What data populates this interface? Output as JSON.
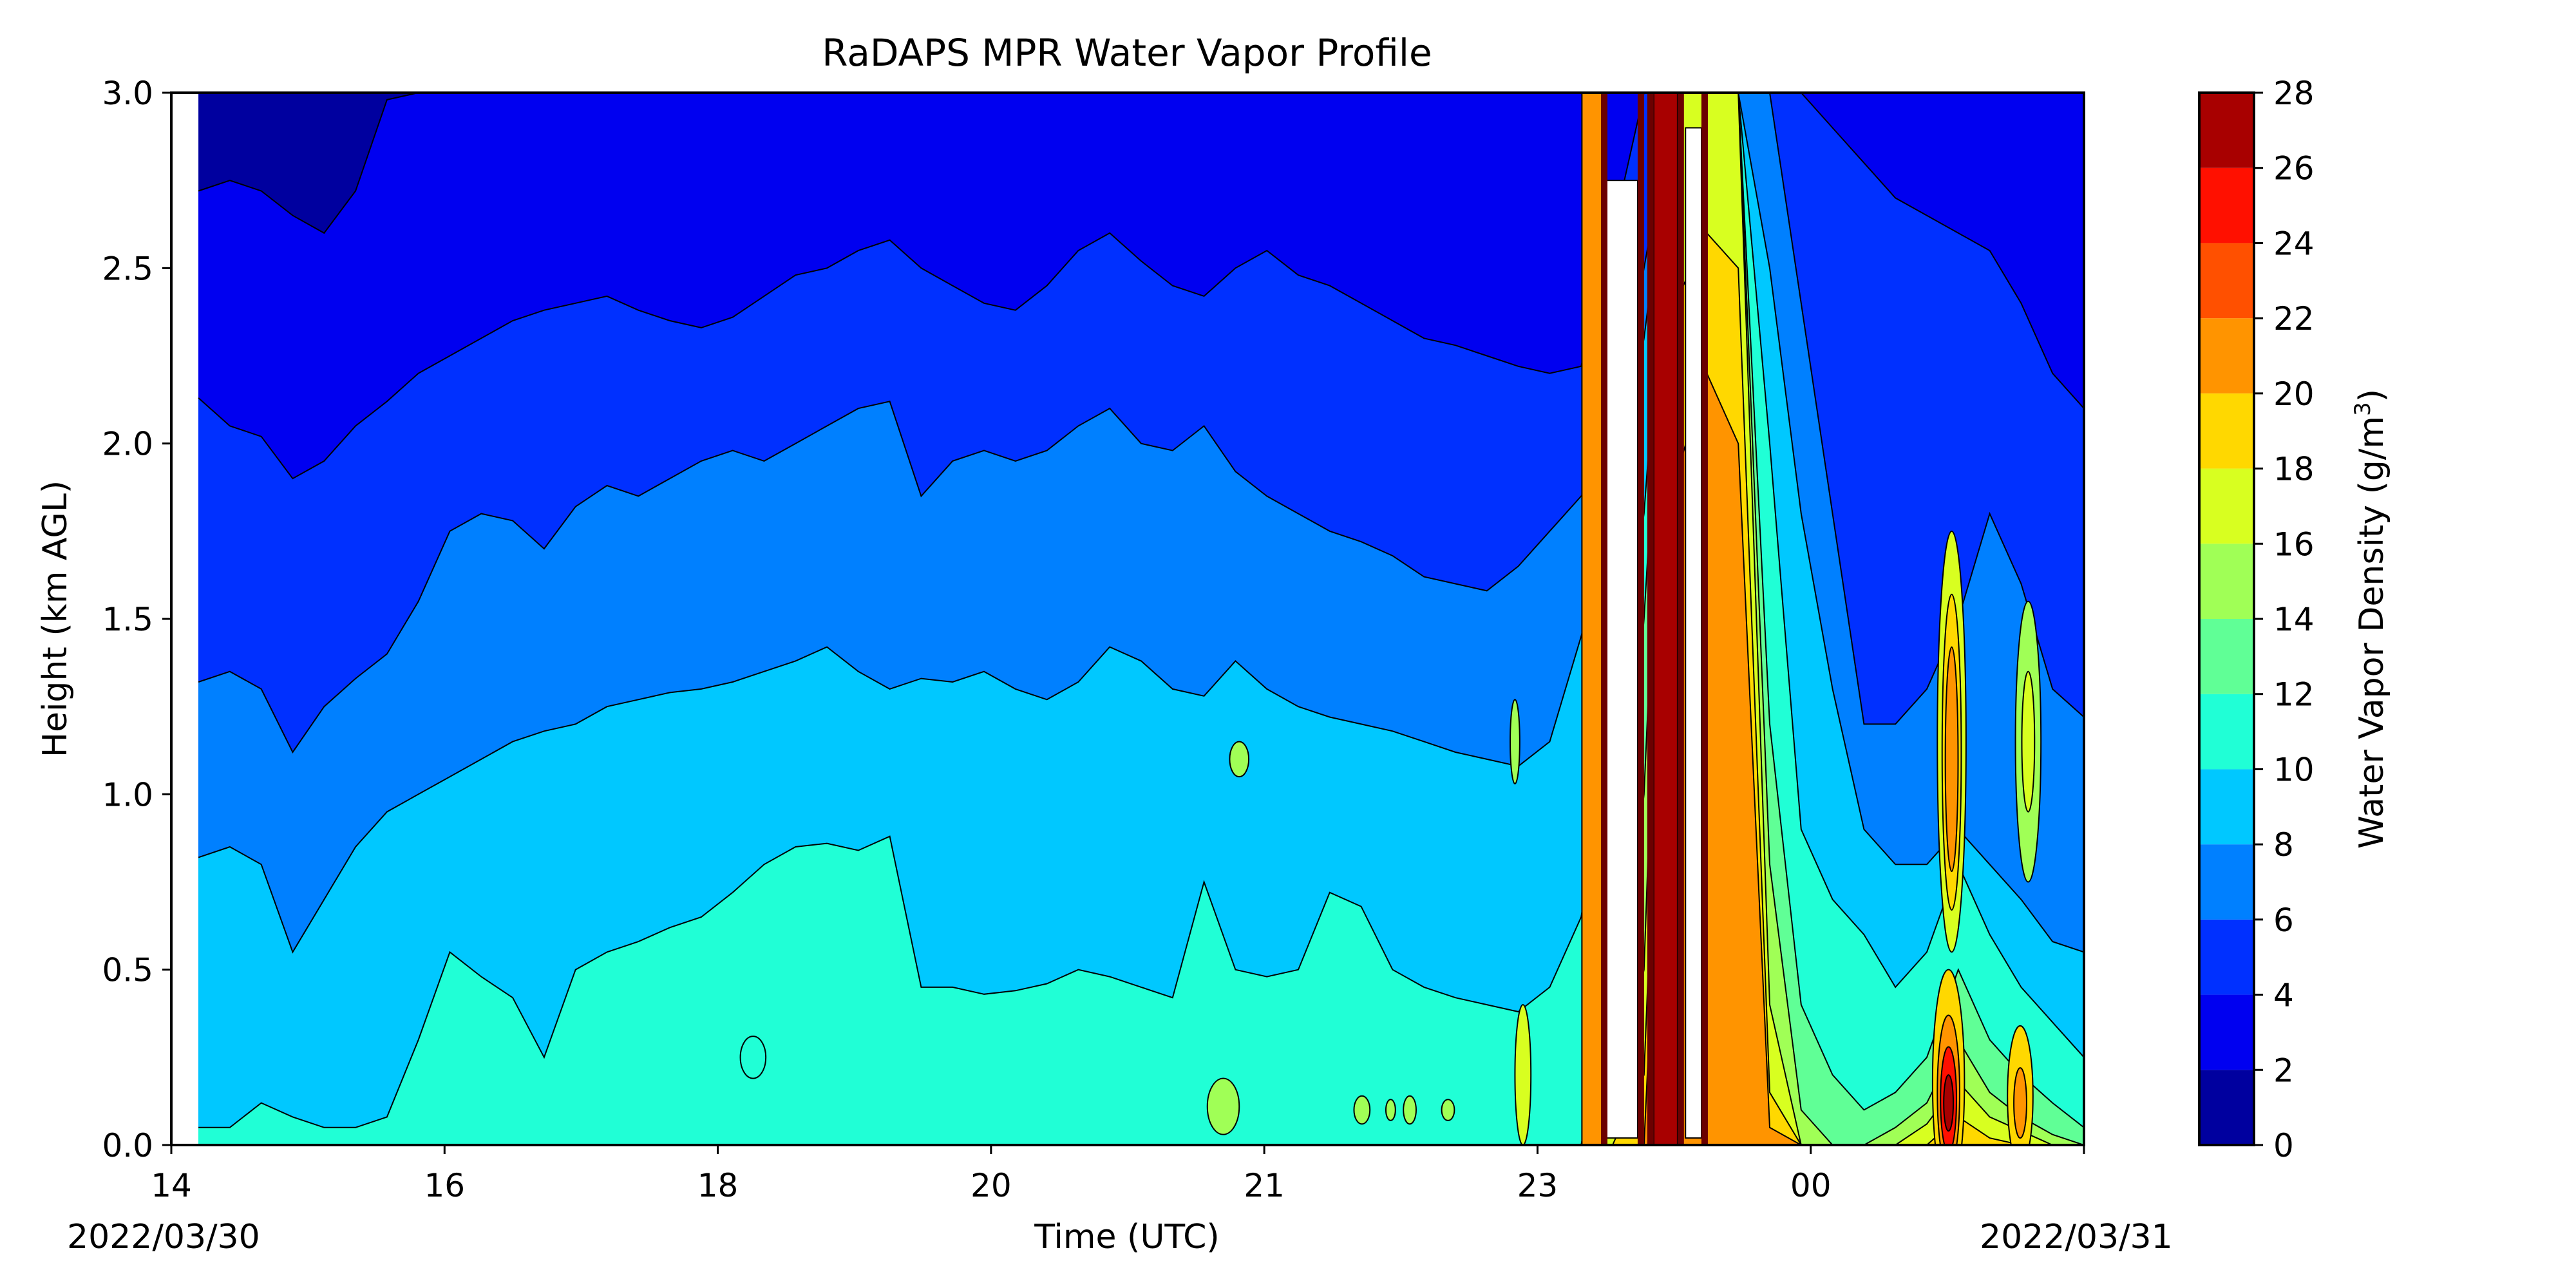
{
  "chart_data": {
    "type": "heatmap",
    "title": "RaDAPS MPR Water Vapor Profile",
    "xlabel": "Time (UTC)",
    "ylabel": "Height (km AGL)",
    "colorbar_label": "Water Vapor Density (g/m",
    "colorbar_label_sup": "3",
    "colorbar_label_end": ")",
    "x_tick_labels": [
      "14",
      "16",
      "18",
      "20",
      "21",
      "23",
      "00"
    ],
    "date_start": "2022/03/30",
    "date_end": "2022/03/31",
    "y_ticks": [
      "0.0",
      "0.5",
      "1.0",
      "1.5",
      "2.0",
      "2.5",
      "3.0"
    ],
    "ylim": [
      0.0,
      3.0
    ],
    "colorbar_levels": [
      0,
      2,
      4,
      6,
      8,
      10,
      12,
      14,
      16,
      18,
      20,
      22,
      24,
      26,
      28
    ],
    "colorbar_colors": [
      "#00009f",
      "#0000f0",
      "#0030ff",
      "#0080ff",
      "#00c8ff",
      "#20ffd6",
      "#60ff96",
      "#a0ff56",
      "#d8ff20",
      "#ffd800",
      "#ff9400",
      "#ff5000",
      "#ff1000",
      "#a80000"
    ],
    "contour_bands": [
      {
        "level": 2,
        "heights": [
          2.72,
          2.75,
          2.72,
          2.65,
          2.6,
          2.72,
          2.98,
          3.0,
          3.0,
          3.0,
          3.0,
          3.0,
          3.0,
          3.0,
          3.0,
          3.0,
          3.0,
          3.0,
          3.0,
          3.0,
          3.0,
          3.0,
          3.0,
          3.0,
          3.0,
          3.0,
          3.0,
          3.0,
          3.0,
          3.0,
          3.0,
          3.0,
          3.0,
          3.0,
          3.0,
          3.0,
          3.0,
          3.0,
          3.0,
          3.0,
          3.0,
          3.0,
          3.0,
          3.0,
          3.0,
          3.0,
          3.0,
          3.0,
          3.0,
          3.0,
          3.0,
          3.0,
          3.0,
          3.0,
          3.0,
          3.0,
          3.0,
          3.0,
          3.0,
          3.0,
          3.0
        ]
      },
      {
        "level": 4,
        "heights": [
          2.13,
          2.05,
          2.02,
          1.9,
          1.95,
          2.05,
          2.12,
          2.2,
          2.25,
          2.3,
          2.35,
          2.38,
          2.4,
          2.42,
          2.38,
          2.35,
          2.33,
          2.36,
          2.42,
          2.48,
          2.5,
          2.55,
          2.58,
          2.5,
          2.45,
          2.4,
          2.38,
          2.45,
          2.55,
          2.6,
          2.52,
          2.45,
          2.42,
          2.5,
          2.55,
          2.48,
          2.45,
          2.4,
          2.35,
          2.3,
          2.28,
          2.25,
          2.22,
          2.2,
          2.22,
          2.6,
          3.0,
          3.0,
          3.0,
          3.0,
          3.0,
          3.0,
          2.9,
          2.8,
          2.7,
          2.65,
          2.6,
          2.55,
          2.4,
          2.2,
          2.1
        ]
      },
      {
        "level": 6,
        "heights": [
          1.32,
          1.35,
          1.3,
          1.12,
          1.25,
          1.33,
          1.4,
          1.55,
          1.75,
          1.8,
          1.78,
          1.7,
          1.82,
          1.88,
          1.85,
          1.9,
          1.95,
          1.98,
          1.95,
          2.0,
          2.05,
          2.1,
          2.12,
          1.85,
          1.95,
          1.98,
          1.95,
          1.98,
          2.05,
          2.1,
          2.0,
          1.98,
          2.05,
          1.92,
          1.85,
          1.8,
          1.75,
          1.72,
          1.68,
          1.62,
          1.6,
          1.58,
          1.65,
          1.75,
          1.85,
          1.98,
          2.5,
          3.0,
          3.0,
          3.0,
          3.0,
          2.4,
          1.8,
          1.2,
          1.2,
          1.3,
          1.5,
          1.8,
          1.6,
          1.3,
          1.22
        ]
      },
      {
        "level": 8,
        "heights": [
          0.82,
          0.85,
          0.8,
          0.55,
          0.7,
          0.85,
          0.95,
          1.0,
          1.05,
          1.1,
          1.15,
          1.18,
          1.2,
          1.25,
          1.27,
          1.29,
          1.3,
          1.32,
          1.35,
          1.38,
          1.42,
          1.35,
          1.3,
          1.33,
          1.32,
          1.35,
          1.3,
          1.27,
          1.32,
          1.42,
          1.38,
          1.3,
          1.28,
          1.38,
          1.3,
          1.25,
          1.22,
          1.2,
          1.18,
          1.15,
          1.12,
          1.1,
          1.08,
          1.15,
          1.45,
          1.8,
          2.3,
          3.0,
          3.0,
          3.0,
          2.5,
          1.8,
          1.3,
          0.9,
          0.8,
          0.8,
          0.9,
          0.8,
          0.7,
          0.58,
          0.55
        ]
      },
      {
        "level": 10,
        "heights": [
          0.05,
          0.05,
          0.12,
          0.08,
          0.05,
          0.05,
          0.08,
          0.3,
          0.55,
          0.48,
          0.42,
          0.25,
          0.5,
          0.55,
          0.58,
          0.62,
          0.65,
          0.72,
          0.8,
          0.85,
          0.86,
          0.84,
          0.88,
          0.45,
          0.45,
          0.43,
          0.44,
          0.46,
          0.5,
          0.48,
          0.45,
          0.42,
          0.75,
          0.5,
          0.48,
          0.5,
          0.72,
          0.68,
          0.5,
          0.45,
          0.42,
          0.4,
          0.38,
          0.45,
          0.65,
          1.2,
          1.8,
          3.0,
          3.0,
          3.0,
          2.0,
          0.9,
          0.7,
          0.6,
          0.45,
          0.55,
          0.8,
          0.6,
          0.45,
          0.35,
          0.25
        ]
      },
      {
        "level": 12,
        "heights": [
          0.0,
          0.0,
          0.0,
          0.0,
          0.0,
          0.0,
          0.0,
          0.0,
          0.0,
          0.0,
          0.0,
          0.0,
          0.0,
          0.0,
          0.0,
          0.0,
          0.0,
          0.0,
          0.0,
          0.0,
          0.0,
          0.0,
          0.0,
          0.0,
          0.0,
          0.0,
          0.0,
          0.0,
          0.0,
          0.0,
          0.0,
          0.0,
          0.0,
          0.0,
          0.0,
          0.0,
          0.0,
          0.0,
          0.0,
          0.0,
          0.0,
          0.0,
          0.0,
          0.0,
          0.0,
          0.45,
          1.5,
          3.0,
          3.0,
          3.0,
          1.2,
          0.4,
          0.2,
          0.1,
          0.15,
          0.25,
          0.5,
          0.3,
          0.2,
          0.12,
          0.05
        ]
      },
      {
        "level": 14,
        "heights": [
          0,
          0,
          0,
          0,
          0,
          0,
          0,
          0,
          0,
          0,
          0,
          0,
          0,
          0,
          0,
          0,
          0,
          0,
          0,
          0,
          0,
          0,
          0,
          0,
          0,
          0,
          0,
          0,
          0,
          0,
          0,
          0,
          0,
          0,
          0,
          0,
          0,
          0,
          0,
          0,
          0,
          0,
          0,
          0,
          0,
          0.2,
          1.0,
          3.0,
          3.0,
          3.0,
          0.8,
          0.1,
          0,
          0,
          0.05,
          0.12,
          0.3,
          0.15,
          0.08,
          0.03,
          0
        ]
      },
      {
        "level": 16,
        "heights": [
          0,
          0,
          0,
          0,
          0,
          0,
          0,
          0,
          0,
          0,
          0,
          0,
          0,
          0,
          0,
          0,
          0,
          0,
          0,
          0,
          0,
          0,
          0,
          0,
          0,
          0,
          0,
          0,
          0,
          0,
          0,
          0,
          0,
          0,
          0,
          0,
          0,
          0,
          0,
          0,
          0,
          0,
          0,
          0,
          0,
          0.08,
          0.5,
          3.0,
          3.0,
          3.0,
          0.4,
          0,
          0,
          0,
          0,
          0.06,
          0.18,
          0.08,
          0.04,
          0,
          0
        ]
      },
      {
        "level": 18,
        "heights": [
          0,
          0,
          0,
          0,
          0,
          0,
          0,
          0,
          0,
          0,
          0,
          0,
          0,
          0,
          0,
          0,
          0,
          0,
          0,
          0,
          0,
          0,
          0,
          0,
          0,
          0,
          0,
          0,
          0,
          0,
          0,
          0,
          0,
          0,
          0,
          0,
          0,
          0,
          0,
          0,
          0,
          0,
          0,
          0,
          0,
          0,
          0.2,
          2.4,
          2.6,
          2.5,
          0.15,
          0,
          0,
          0,
          0,
          0,
          0.08,
          0.02,
          0,
          0,
          0
        ]
      },
      {
        "level": 20,
        "heights": [
          0,
          0,
          0,
          0,
          0,
          0,
          0,
          0,
          0,
          0,
          0,
          0,
          0,
          0,
          0,
          0,
          0,
          0,
          0,
          0,
          0,
          0,
          0,
          0,
          0,
          0,
          0,
          0,
          0,
          0,
          0,
          0,
          0,
          0,
          0,
          0,
          0,
          0,
          0,
          0,
          0,
          0,
          0,
          0,
          0,
          0,
          0,
          1.9,
          2.2,
          2.0,
          0.05,
          0,
          0,
          0,
          0,
          0,
          0,
          0,
          0,
          0,
          0
        ]
      }
    ],
    "features": [
      {
        "kind": "strip",
        "x": [
          8.85,
          8.98
        ],
        "level": 20
      },
      {
        "kind": "strip",
        "x": [
          9.3,
          9.45
        ],
        "level": 26
      },
      {
        "kind": "blob",
        "x": 11.17,
        "y": 1.15,
        "rx": 0.09,
        "ry": 0.6,
        "level": 16
      },
      {
        "kind": "blob",
        "x": 11.17,
        "y": 1.12,
        "rx": 0.06,
        "ry": 0.45,
        "level": 18
      },
      {
        "kind": "blob",
        "x": 11.17,
        "y": 1.1,
        "rx": 0.04,
        "ry": 0.32,
        "level": 20
      },
      {
        "kind": "blob",
        "x": 11.65,
        "y": 1.15,
        "rx": 0.08,
        "ry": 0.4,
        "level": 14
      },
      {
        "kind": "blob",
        "x": 11.65,
        "y": 1.15,
        "rx": 0.04,
        "ry": 0.2,
        "level": 16
      },
      {
        "kind": "blob",
        "x": 11.15,
        "y": 0.18,
        "rx": 0.1,
        "ry": 0.32,
        "level": 18
      },
      {
        "kind": "blob",
        "x": 11.15,
        "y": 0.15,
        "rx": 0.07,
        "ry": 0.22,
        "level": 20
      },
      {
        "kind": "blob",
        "x": 11.15,
        "y": 0.13,
        "rx": 0.05,
        "ry": 0.15,
        "level": 24
      },
      {
        "kind": "blob",
        "x": 11.15,
        "y": 0.12,
        "rx": 0.03,
        "ry": 0.08,
        "level": 26
      },
      {
        "kind": "blob",
        "x": 11.6,
        "y": 0.14,
        "rx": 0.08,
        "ry": 0.2,
        "level": 18
      },
      {
        "kind": "blob",
        "x": 11.6,
        "y": 0.12,
        "rx": 0.04,
        "ry": 0.1,
        "level": 20
      },
      {
        "kind": "blob",
        "x": 8.48,
        "y": 0.2,
        "rx": 0.05,
        "ry": 0.2,
        "level": 16
      },
      {
        "kind": "blob",
        "x": 8.43,
        "y": 1.15,
        "rx": 0.03,
        "ry": 0.12,
        "level": 14
      },
      {
        "kind": "blob",
        "x": 6.6,
        "y": 0.11,
        "rx": 0.1,
        "ry": 0.08,
        "level": 14
      },
      {
        "kind": "blob",
        "x": 6.7,
        "y": 1.1,
        "rx": 0.06,
        "ry": 0.05,
        "level": 14
      },
      {
        "kind": "blob",
        "x": 3.65,
        "y": 0.25,
        "rx": 0.08,
        "ry": 0.06,
        "level": 10
      },
      {
        "kind": "blob",
        "x": 7.47,
        "y": 0.1,
        "rx": 0.05,
        "ry": 0.04,
        "level": 14
      },
      {
        "kind": "blob",
        "x": 7.65,
        "y": 0.1,
        "rx": 0.03,
        "ry": 0.03,
        "level": 14
      },
      {
        "kind": "blob",
        "x": 7.77,
        "y": 0.1,
        "rx": 0.04,
        "ry": 0.04,
        "level": 14
      },
      {
        "kind": "blob",
        "x": 8.01,
        "y": 0.1,
        "rx": 0.04,
        "ry": 0.03,
        "level": 14
      }
    ],
    "missing_gaps": [
      {
        "x": [
          9.0,
          9.2
        ],
        "y": [
          0.02,
          2.75
        ]
      },
      {
        "x": [
          9.5,
          9.6
        ],
        "y": [
          0.02,
          2.9
        ]
      }
    ],
    "dark_edges": [
      {
        "x": 8.99,
        "y": [
          0.0,
          3.0
        ]
      },
      {
        "x": 9.22,
        "y": [
          0.0,
          3.0
        ]
      },
      {
        "x": 9.28,
        "y": [
          0.0,
          3.0
        ]
      },
      {
        "x": 9.47,
        "y": [
          0.0,
          3.0
        ]
      },
      {
        "x": 9.62,
        "y": [
          0.0,
          3.0
        ]
      }
    ]
  }
}
